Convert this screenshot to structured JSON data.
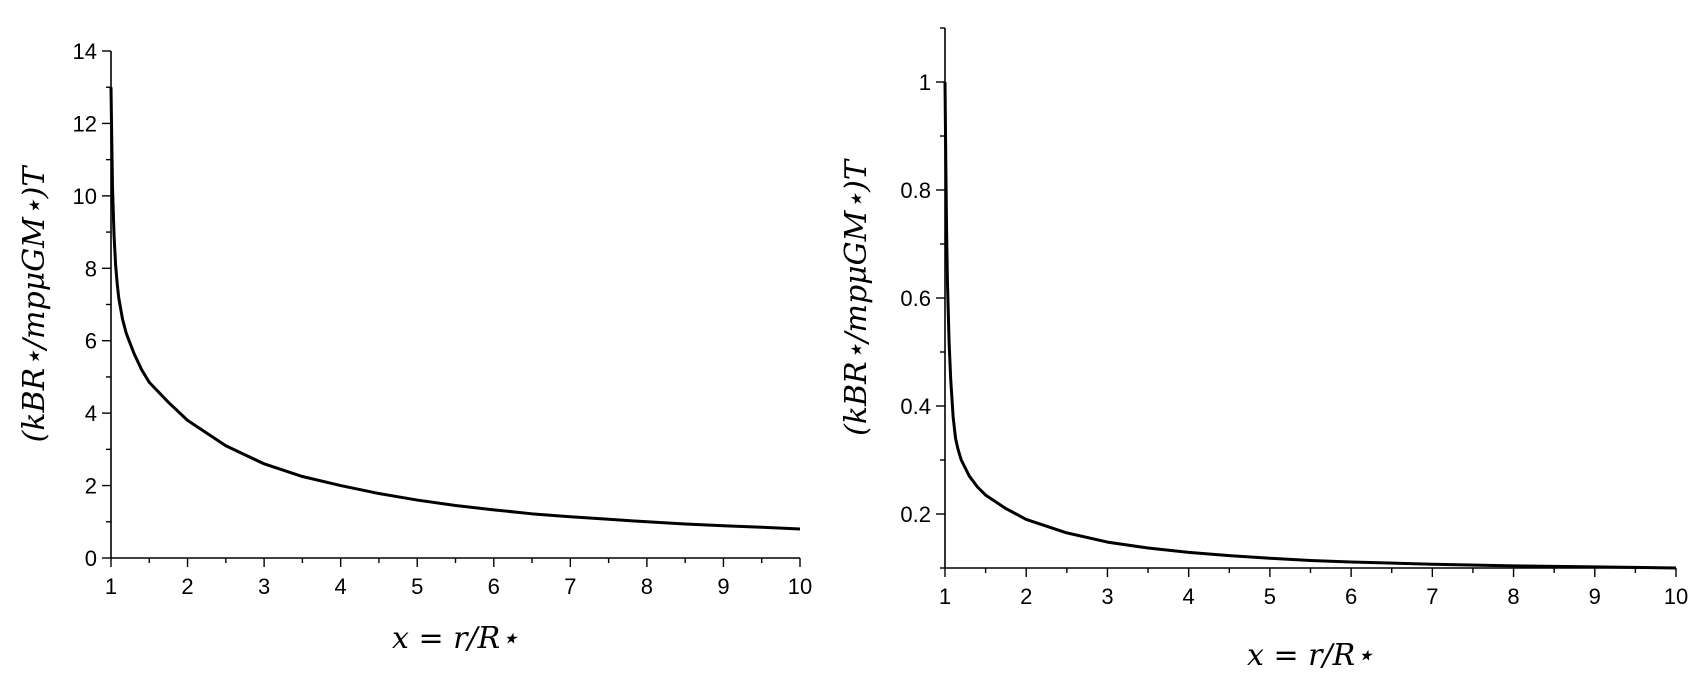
{
  "chart_data": [
    {
      "type": "line",
      "xlabel": "x = r/R⋆",
      "ylabel": "(kBR⋆/mpμGM⋆)T",
      "xlim": [
        1,
        10
      ],
      "ylim": [
        0,
        14
      ],
      "xticks": [
        1,
        2,
        3,
        4,
        5,
        6,
        7,
        8,
        9,
        10
      ],
      "yticks": [
        0,
        2,
        4,
        6,
        8,
        10,
        12,
        14
      ],
      "xtick_labels": [
        "1",
        "2",
        "3",
        "4",
        "5",
        "6",
        "7",
        "8",
        "9",
        "10"
      ],
      "ytick_labels": [
        "0",
        "2",
        "4",
        "6",
        "8",
        "10",
        "12",
        "14"
      ],
      "grid": false,
      "series": [
        {
          "x": [
            1.0,
            1.01,
            1.02,
            1.04,
            1.06,
            1.08,
            1.1,
            1.15,
            1.2,
            1.3,
            1.4,
            1.5,
            1.75,
            2.0,
            2.5,
            3.0,
            3.5,
            4.0,
            4.5,
            5.0,
            5.5,
            6.0,
            6.5,
            7.0,
            7.5,
            8.0,
            8.5,
            9.0,
            9.5,
            10.0
          ],
          "y": [
            13.0,
            11.5,
            10.2,
            8.9,
            8.1,
            7.6,
            7.2,
            6.6,
            6.2,
            5.65,
            5.2,
            4.85,
            4.3,
            3.8,
            3.1,
            2.6,
            2.25,
            2.0,
            1.78,
            1.6,
            1.45,
            1.33,
            1.22,
            1.14,
            1.07,
            1.0,
            0.94,
            0.89,
            0.85,
            0.8
          ]
        }
      ]
    },
    {
      "type": "line",
      "xlabel": "x = r/R⋆",
      "ylabel": "(kBR⋆/mpμGM⋆)T",
      "xlim": [
        1,
        10
      ],
      "ylim": [
        0.1,
        1.1
      ],
      "xticks": [
        1,
        2,
        3,
        4,
        5,
        6,
        7,
        8,
        9,
        10
      ],
      "yticks": [
        0.2,
        0.4,
        0.6,
        0.8,
        1.0
      ],
      "xtick_labels": [
        "1",
        "2",
        "3",
        "4",
        "5",
        "6",
        "7",
        "8",
        "9",
        "10"
      ],
      "ytick_labels": [
        "0.2",
        "0.4",
        "0.6",
        "0.8",
        "1"
      ],
      "grid": false,
      "series": [
        {
          "x": [
            1.0,
            1.01,
            1.02,
            1.03,
            1.05,
            1.07,
            1.1,
            1.13,
            1.16,
            1.2,
            1.3,
            1.4,
            1.5,
            1.75,
            2.0,
            2.5,
            3.0,
            3.5,
            4.0,
            4.5,
            5.0,
            5.5,
            6.0,
            7.0,
            8.0,
            9.0,
            10.0
          ],
          "y": [
            1.0,
            0.85,
            0.72,
            0.63,
            0.52,
            0.45,
            0.38,
            0.34,
            0.32,
            0.3,
            0.27,
            0.25,
            0.235,
            0.21,
            0.19,
            0.165,
            0.148,
            0.137,
            0.129,
            0.123,
            0.118,
            0.114,
            0.111,
            0.107,
            0.104,
            0.102,
            0.1
          ]
        }
      ]
    }
  ]
}
